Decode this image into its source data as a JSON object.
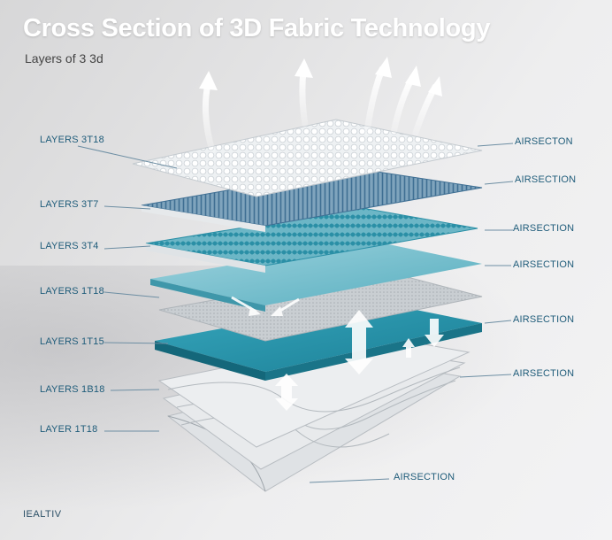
{
  "title": "Cross Section of 3D Fabric Technology",
  "subtitle": "Layers of 3 3d",
  "left_labels": [
    "LAYERS 3T18",
    "LAYERS 3T7",
    "LAYERS 3T4",
    "LAYERS 1T18",
    "LAYERS 1T15",
    "LAYERS 1B18",
    "LAYER 1T18"
  ],
  "right_labels": [
    "AIRSECTON",
    "AIRSECTION",
    "AIRSECTION",
    "AIRSECTION",
    "AIRSECTION",
    "AIRSECTION",
    "AIRSECTION"
  ],
  "footer": "IEALTIV",
  "colors": {
    "teal": "#2a8fa6",
    "dark_teal": "#1b7f96",
    "label": "#1f5c7a",
    "white_layer": "#f4f6f7"
  }
}
